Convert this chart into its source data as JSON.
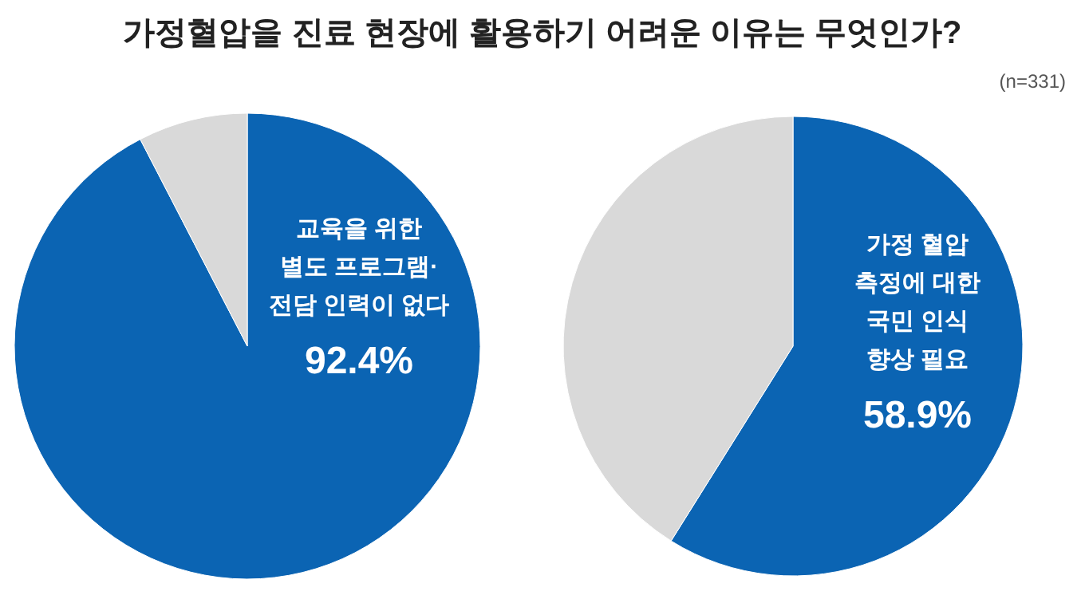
{
  "chart_data": [
    {
      "type": "pie",
      "title": "가정혈압을 진료 현장에 활용하기 어려운 이유는 무엇인가?",
      "annotations": [
        "(n=331)"
      ],
      "categories": [
        "교육을 위한\n별도 프로그램·\n전담 인력이 없다",
        null
      ],
      "values": [
        92.4,
        7.6
      ],
      "colors": [
        "#0b64b3",
        "#d9d9d9"
      ],
      "value_labels": [
        "92.4%",
        null
      ]
    },
    {
      "type": "pie",
      "categories": [
        "가정 혈압\n측정에 대한\n국민 인식\n향상 필요",
        null
      ],
      "values": [
        58.9,
        41.1
      ],
      "colors": [
        "#0b64b3",
        "#d9d9d9"
      ],
      "value_labels": [
        "58.9%",
        null
      ]
    }
  ]
}
